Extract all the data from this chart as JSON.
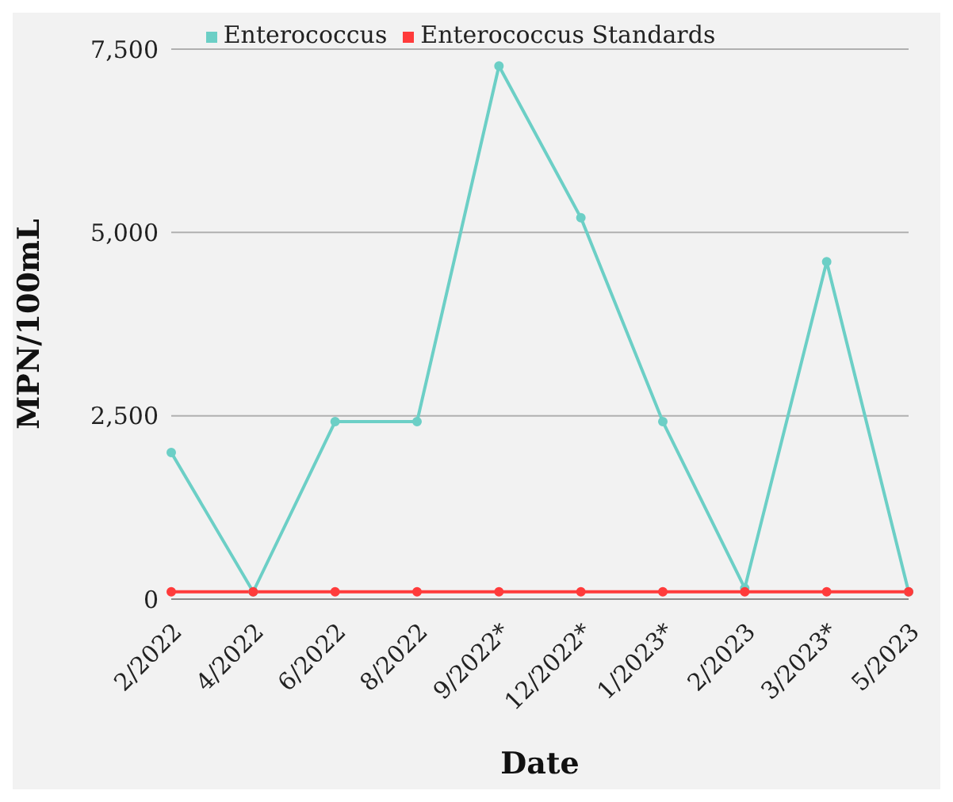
{
  "chart_data": {
    "type": "line",
    "xlabel": "Date",
    "ylabel": "MPN/100mL",
    "categories": [
      "2/2022",
      "4/2022",
      "6/2022",
      "8/2022",
      "9/2022*",
      "12/2022*",
      "1/2023*",
      "2/2023",
      "3/2023*",
      "5/2023"
    ],
    "series": [
      {
        "name": "Enterococcus",
        "color": "#6ccfc6",
        "values": [
          2000,
          100,
          2420,
          2420,
          7270,
          5200,
          2420,
          150,
          4600,
          100
        ]
      },
      {
        "name": "Enterococcus Standards",
        "color": "#ff3b3b",
        "values": [
          100,
          100,
          100,
          100,
          100,
          100,
          100,
          100,
          100,
          100
        ]
      }
    ],
    "ylim": [
      0,
      7500
    ],
    "yticks": [
      {
        "value": 0,
        "label": "0"
      },
      {
        "value": 2500,
        "label": "2,500"
      },
      {
        "value": 5000,
        "label": "5,000"
      },
      {
        "value": 7500,
        "label": "7,500"
      }
    ],
    "grid": "y",
    "legend": "top",
    "marker": "circle",
    "line_style": "solid"
  }
}
